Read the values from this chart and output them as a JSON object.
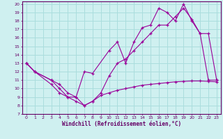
{
  "xlabel": "Windchill (Refroidissement éolien,°C)",
  "bg_color": "#cff0f0",
  "grid_color": "#aadddd",
  "line_color": "#990099",
  "xlim": [
    -0.5,
    23.5
  ],
  "ylim": [
    7,
    20.3
  ],
  "xticks": [
    0,
    1,
    2,
    3,
    4,
    5,
    6,
    7,
    8,
    9,
    10,
    11,
    12,
    13,
    14,
    15,
    16,
    17,
    18,
    19,
    20,
    21,
    22,
    23
  ],
  "yticks": [
    7,
    8,
    9,
    10,
    11,
    12,
    13,
    14,
    15,
    16,
    17,
    18,
    19,
    20
  ],
  "line1_x": [
    0,
    1,
    3,
    4,
    5,
    6,
    7,
    8,
    9,
    10,
    11,
    12,
    13,
    14,
    15,
    16,
    17,
    18,
    19,
    20,
    21,
    22,
    23
  ],
  "line1_y": [
    13,
    12,
    10.5,
    9.5,
    9,
    9,
    8,
    8.5,
    9.2,
    9.5,
    9.8,
    10.0,
    10.2,
    10.4,
    10.5,
    10.6,
    10.7,
    10.8,
    10.85,
    10.9,
    10.9,
    10.85,
    10.8
  ],
  "line2_x": [
    0,
    1,
    3,
    4,
    5,
    6,
    7,
    8,
    10,
    11,
    12,
    13,
    14,
    15,
    16,
    17,
    18,
    19,
    20,
    21,
    22,
    23
  ],
  "line2_y": [
    13,
    12,
    11,
    10.5,
    9.5,
    9,
    12,
    11.8,
    14.5,
    15.5,
    13.0,
    15.5,
    17.2,
    17.5,
    19.5,
    19.0,
    18.0,
    20.0,
    18.0,
    16.5,
    11,
    11
  ],
  "line3_x": [
    0,
    1,
    3,
    4,
    5,
    6,
    7,
    8,
    9,
    10,
    11,
    12,
    13,
    14,
    15,
    16,
    17,
    18,
    19,
    20,
    21,
    22,
    23
  ],
  "line3_y": [
    13,
    12,
    11,
    10,
    9,
    8.5,
    8,
    8.5,
    9.5,
    11.5,
    13,
    13.5,
    14.5,
    15.5,
    16.5,
    17.5,
    17.5,
    18.5,
    19.5,
    18.2,
    16.5,
    16.5,
    11
  ]
}
